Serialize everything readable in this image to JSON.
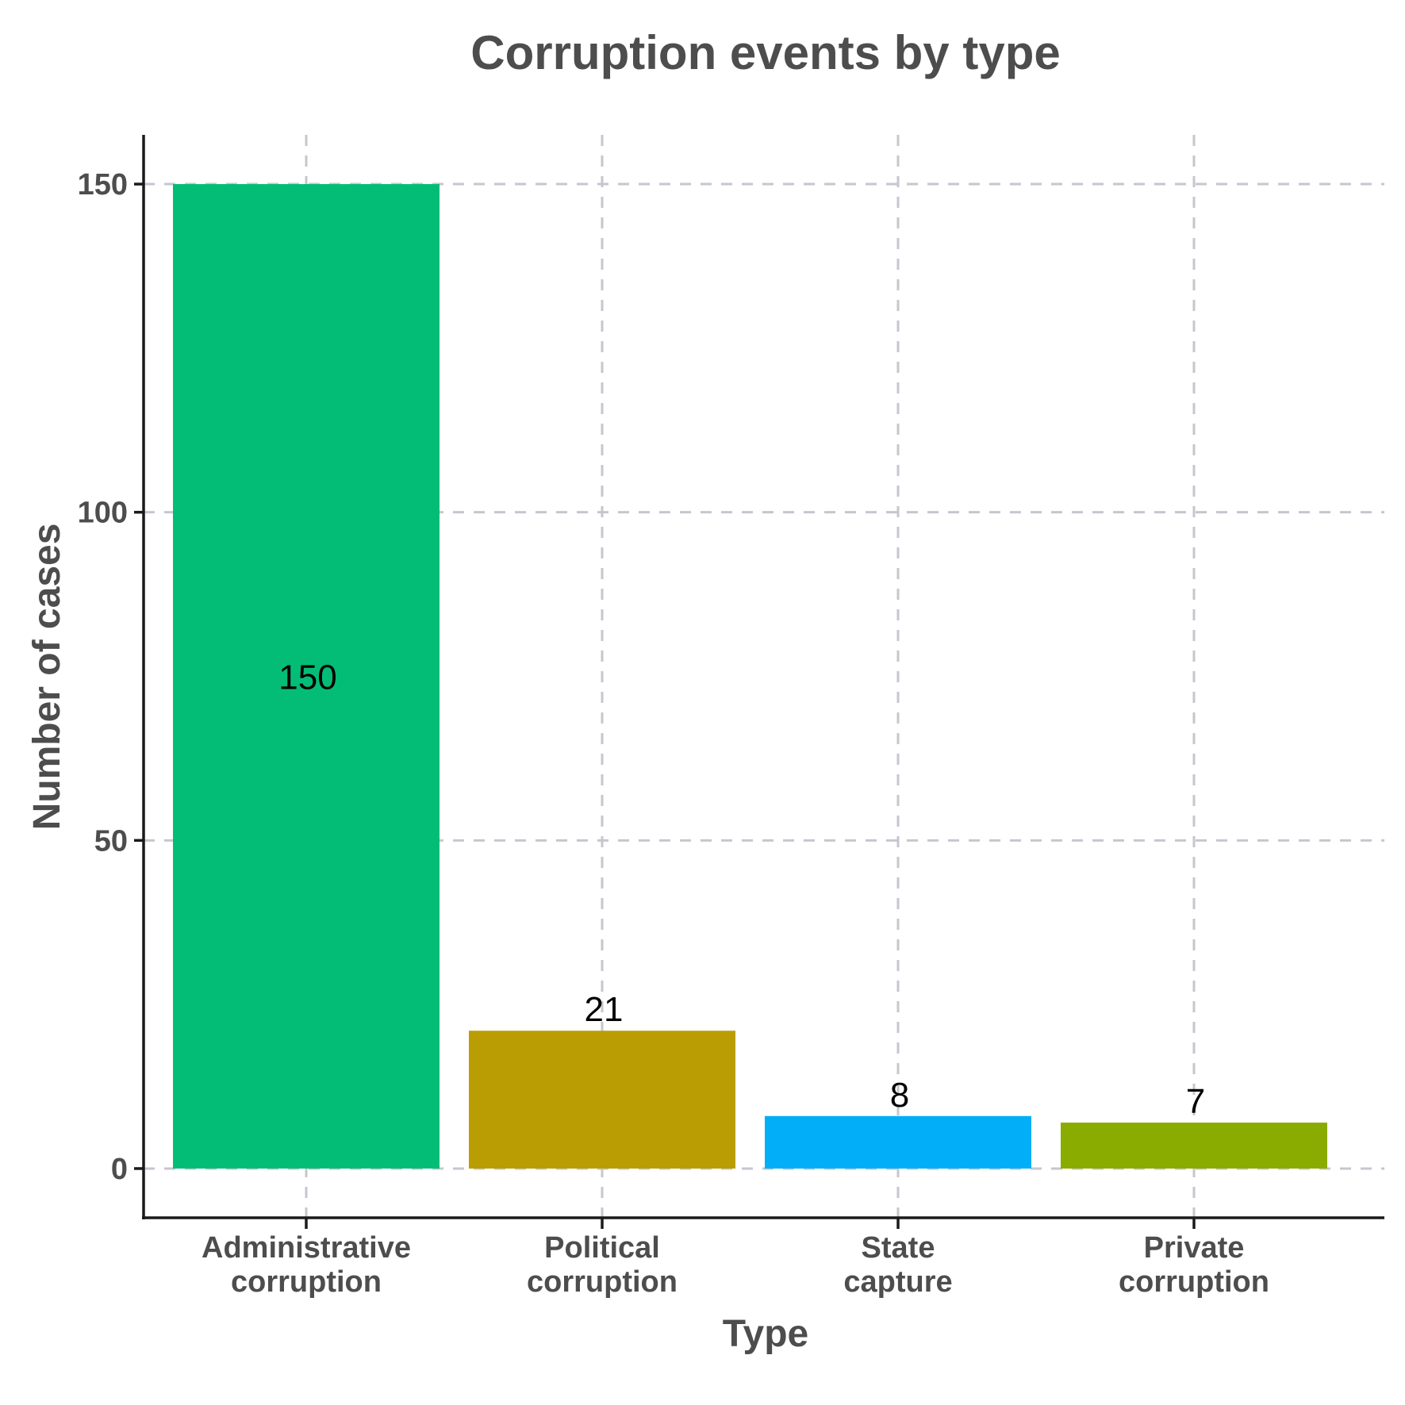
{
  "chart_data": {
    "type": "bar",
    "title": "Corruption events by type",
    "xlabel": "Type",
    "ylabel": "Number of cases",
    "categories": [
      [
        "Administrative",
        "corruption"
      ],
      [
        "Political",
        "corruption"
      ],
      [
        "State",
        "capture"
      ],
      [
        "Private",
        "corruption"
      ]
    ],
    "values": [
      150,
      21,
      8,
      7
    ],
    "value_labels": [
      "150",
      "21",
      "8",
      "7"
    ],
    "colors": [
      "#03bd76",
      "#b99d02",
      "#02aef8",
      "#8aab00"
    ],
    "ylim": [
      -7.5,
      157.5
    ],
    "yticks": [
      0,
      50,
      100,
      150
    ],
    "ytick_labels": [
      "0",
      "50",
      "100",
      "150"
    ],
    "grid": true,
    "legend": "none"
  }
}
